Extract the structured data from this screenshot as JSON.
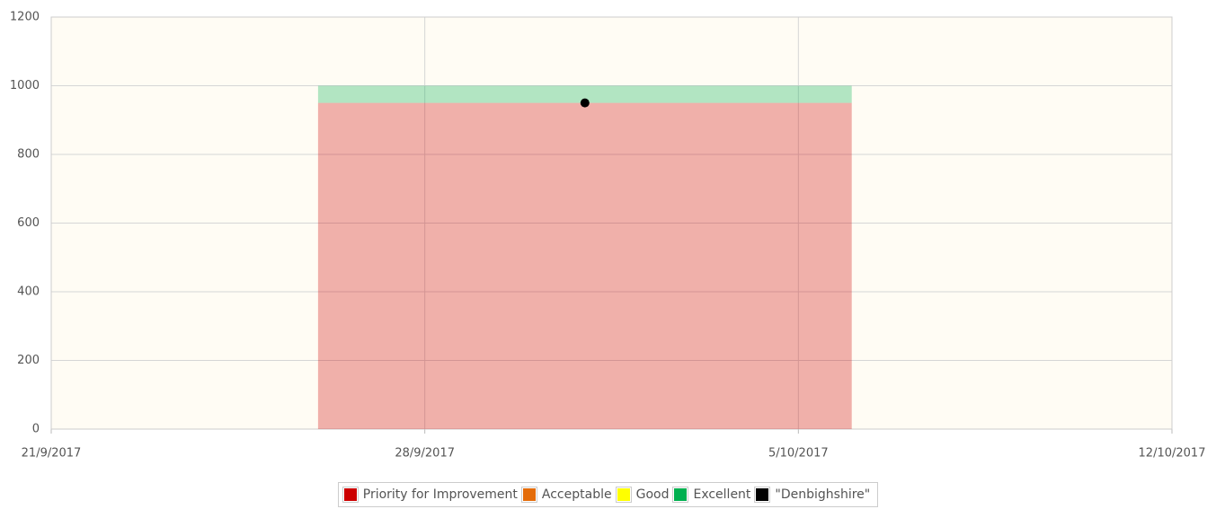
{
  "chart_data": {
    "type": "bar",
    "band": [
      "26/9/2017",
      "6/10/2017"
    ],
    "series": [
      {
        "name": "Priority for Improvement",
        "color": "#cc0000",
        "values": [
          950
        ]
      },
      {
        "name": "Acceptable",
        "color": "#e46c0a",
        "values": [
          0
        ]
      },
      {
        "name": "Good",
        "color": "#ffff00",
        "values": [
          0
        ]
      },
      {
        "name": "Excellent",
        "color": "#00b050",
        "values": [
          50
        ]
      },
      {
        "name": "\"Denbighshire\"",
        "color": "#000000",
        "type": "scatter",
        "x": [
          "1/10/2017"
        ],
        "values": [
          950
        ]
      }
    ],
    "xlim": [
      "21/9/2017",
      "12/10/2017"
    ],
    "xticks": [
      "21/9/2017",
      "28/9/2017",
      "5/10/2017",
      "12/10/2017"
    ],
    "ylim": [
      0,
      1200
    ],
    "yticks": [
      0,
      200,
      400,
      600,
      800,
      1000,
      1200
    ],
    "grid": true,
    "legend": "bottom"
  }
}
